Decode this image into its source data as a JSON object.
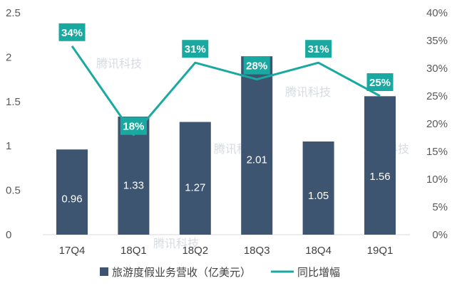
{
  "chart_data": {
    "type": "bar",
    "categories": [
      "17Q4",
      "18Q1",
      "18Q2",
      "18Q3",
      "18Q4",
      "19Q1"
    ],
    "series": [
      {
        "name": "旅游度假业务营收（亿美元）",
        "type": "bar",
        "axis": "left",
        "values": [
          0.96,
          1.33,
          1.27,
          2.01,
          1.05,
          1.56
        ],
        "value_labels": [
          "0.96",
          "1.33",
          "1.27",
          "2.01",
          "1.05",
          "1.56"
        ],
        "color": "#3d5570"
      },
      {
        "name": "同比增幅",
        "type": "line",
        "axis": "right",
        "values": [
          34,
          18,
          31,
          28,
          31,
          25
        ],
        "value_labels": [
          "34%",
          "18%",
          "31%",
          "28%",
          "31%",
          "25%"
        ],
        "color": "#1aa9a0"
      }
    ],
    "ylim_left": [
      0,
      2.5
    ],
    "yticks_left": [
      "0",
      "0.5",
      "1",
      "1.5",
      "2",
      "2.5"
    ],
    "ylim_right": [
      0,
      40
    ],
    "yticks_right": [
      "0%",
      "5%",
      "10%",
      "15%",
      "20%",
      "25%",
      "30%",
      "35%",
      "40%"
    ],
    "legend_position": "bottom",
    "grid": false
  },
  "watermark": "腾讯科技"
}
